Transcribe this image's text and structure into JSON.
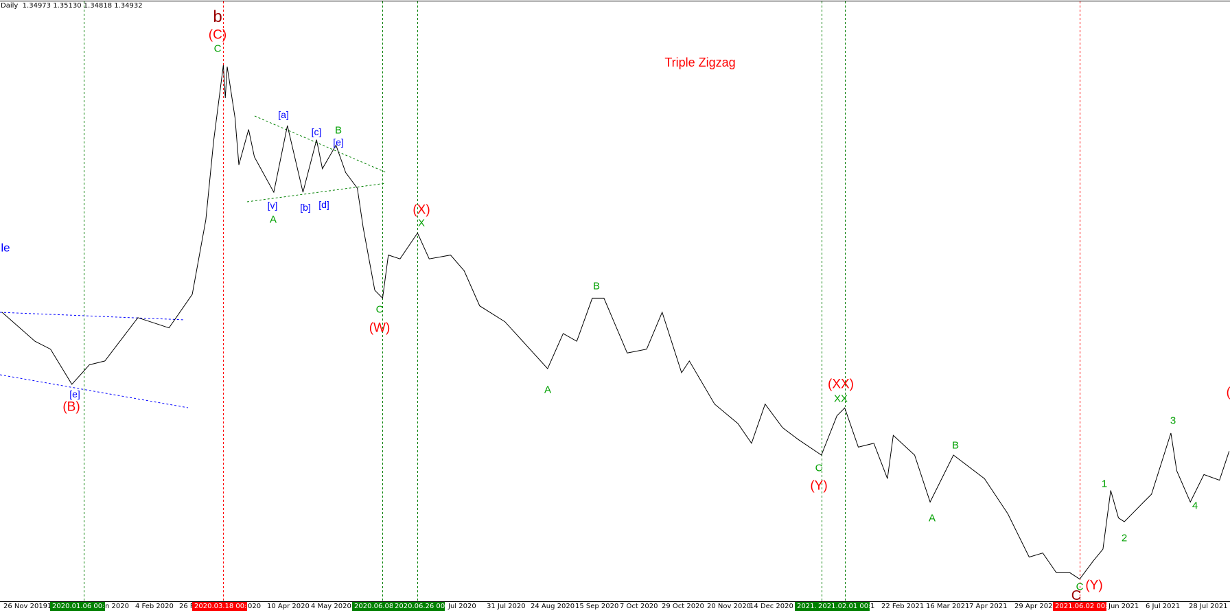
{
  "header": {
    "timeframe": "Daily",
    "ohlc": "1.34973 1.35130 1.34818 1.34932"
  },
  "colors": {
    "green": "#008000",
    "red": "#ff0000",
    "blue": "#0000ff",
    "price_line": "#000000",
    "label_green": "#00a000",
    "dark_red": "#990000"
  },
  "annotations": {
    "title": "Triple Zigzag",
    "left_cut": "le",
    "b": "b",
    "C_red": "(C)",
    "C_green": "C",
    "a_sq": "[a]",
    "c_sq": "[c]",
    "B1": "B",
    "e_sq": "[e]",
    "v_sq": "[v]",
    "A1": "A",
    "b_sq": "[b]",
    "d_sq": "[d]",
    "X_red": "(X)",
    "X_green": "X",
    "C2": "C",
    "W_red": "(W)",
    "B2": "B",
    "A2": "A",
    "XX_red": "(XX)",
    "XX_green": "XX",
    "C3": "C",
    "Y_red": "(Y)",
    "B3": "B",
    "A3": "A",
    "C4": "C",
    "Y2_red": "(Y)",
    "c_dark": "C",
    "w1": "1",
    "w2": "2",
    "w3": "3",
    "w4": "4",
    "A_red_cut": "(A",
    "e_left": "[e]",
    "B_red": "(B)"
  },
  "xaxis": {
    "ticks": [
      "26 Nov 2019",
      "1",
      "n 2020",
      "4 Feb 2020",
      "26 F",
      "020",
      "10 Apr 2020",
      "4 May 2020",
      "Jul 2020",
      "31 Jul 2020",
      "24 Aug 2020",
      "15 Sep 2020",
      "7 Oct 2020",
      "29 Oct 2020",
      "20 Nov 2020",
      "14 Dec 2020",
      "1",
      "22 Feb 2021",
      "16 Mar 2021",
      "7 Apr 2021",
      "29 Apr 2021",
      "Jun 2021",
      "6 Jul 2021",
      "28 Jul 2021"
    ],
    "markers": [
      {
        "label": "2020.01.06 00:00",
        "color": "green"
      },
      {
        "label": "2020.03.18 00:00",
        "color": "red"
      },
      {
        "label": "2020.06.08 00:00",
        "color": "green"
      },
      {
        "label": "2020.06.26 00:00",
        "color": "green"
      },
      {
        "label": "2021.01.",
        "color": "green"
      },
      {
        "label": "2021.02.01 00:00",
        "color": "green"
      },
      {
        "label": "2021.06.02 00:00",
        "color": "red"
      }
    ]
  },
  "chart_data": {
    "type": "line",
    "title": "Triple Zigzag",
    "grid": false,
    "x_range": [
      "2019-11-26",
      "2021-08-18"
    ],
    "vertical_lines": [
      {
        "date": "2020-01-06",
        "color": "green"
      },
      {
        "date": "2020-03-18",
        "color": "red"
      },
      {
        "date": "2020-06-08",
        "color": "green"
      },
      {
        "date": "2020-06-26",
        "color": "green"
      },
      {
        "date": "2021-01-20",
        "color": "green"
      },
      {
        "date": "2021-02-01",
        "color": "green"
      },
      {
        "date": "2021-06-02",
        "color": "red"
      }
    ],
    "series": [
      {
        "values": [
          [
            "2019-11-25",
            1.3388
          ],
          [
            "2019-12-12",
            1.3238
          ],
          [
            "2019-12-20",
            1.3197
          ],
          [
            "2019-12-31",
            1.3015
          ],
          [
            "2020-01-09",
            1.3116
          ],
          [
            "2020-01-17",
            1.3136
          ],
          [
            "2020-02-03",
            1.336
          ],
          [
            "2020-02-19",
            1.3307
          ],
          [
            "2020-03-02",
            1.3481
          ],
          [
            "2020-03-09",
            1.3867
          ],
          [
            "2020-03-13",
            1.4273
          ],
          [
            "2020-03-18",
            1.4667
          ],
          [
            "2020-03-19",
            1.4496
          ],
          [
            "2020-03-20",
            1.4659
          ],
          [
            "2020-03-24",
            1.4395
          ],
          [
            "2020-03-26",
            1.4151
          ],
          [
            "2020-03-31",
            1.4334
          ],
          [
            "2020-04-03",
            1.4192
          ],
          [
            "2020-04-13",
            1.4009
          ],
          [
            "2020-04-20",
            1.4354
          ],
          [
            "2020-04-28",
            1.4009
          ],
          [
            "2020-05-05",
            1.4281
          ],
          [
            "2020-05-08",
            1.4131
          ],
          [
            "2020-05-15",
            1.4253
          ],
          [
            "2020-05-20",
            1.4111
          ],
          [
            "2020-05-26",
            1.403
          ],
          [
            "2020-05-29",
            1.3827
          ],
          [
            "2020-06-04",
            1.3502
          ],
          [
            "2020-06-08",
            1.3461
          ],
          [
            "2020-06-11",
            1.3684
          ],
          [
            "2020-06-17",
            1.3664
          ],
          [
            "2020-06-26",
            1.3798
          ],
          [
            "2020-07-02",
            1.3664
          ],
          [
            "2020-07-13",
            1.3684
          ],
          [
            "2020-07-20",
            1.3603
          ],
          [
            "2020-07-28",
            1.3421
          ],
          [
            "2020-08-10",
            1.3339
          ],
          [
            "2020-08-21",
            1.3218
          ],
          [
            "2020-09-01",
            1.3096
          ],
          [
            "2020-09-09",
            1.3278
          ],
          [
            "2020-09-16",
            1.3238
          ],
          [
            "2020-09-24",
            1.3461
          ],
          [
            "2020-09-30",
            1.3461
          ],
          [
            "2020-10-12",
            1.3177
          ],
          [
            "2020-10-22",
            1.3197
          ],
          [
            "2020-10-30",
            1.3388
          ],
          [
            "2020-11-09",
            1.3075
          ],
          [
            "2020-11-13",
            1.3136
          ],
          [
            "2020-11-26",
            1.2913
          ],
          [
            "2020-12-08",
            1.2812
          ],
          [
            "2020-12-15",
            1.271
          ],
          [
            "2020-12-22",
            1.2913
          ],
          [
            "2020-12-31",
            1.2791
          ],
          [
            "2021-01-08",
            1.273
          ],
          [
            "2021-01-20",
            1.2649
          ],
          [
            "2021-01-28",
            1.2852
          ],
          [
            "2021-02-01",
            1.2893
          ],
          [
            "2021-02-08",
            1.269
          ],
          [
            "2021-02-16",
            1.271
          ],
          [
            "2021-02-23",
            1.2527
          ],
          [
            "2021-02-26",
            1.2751
          ],
          [
            "2021-03-09",
            1.2649
          ],
          [
            "2021-03-17",
            1.2406
          ],
          [
            "2021-03-29",
            1.2649
          ],
          [
            "2021-04-14",
            1.2527
          ],
          [
            "2021-04-26",
            1.2345
          ],
          [
            "2021-05-07",
            1.2121
          ],
          [
            "2021-05-14",
            1.2142
          ],
          [
            "2021-05-21",
            1.204
          ],
          [
            "2021-05-28",
            1.204
          ],
          [
            "2021-06-02",
            1.2007
          ],
          [
            "2021-06-09",
            1.2101
          ],
          [
            "2021-06-14",
            1.2162
          ],
          [
            "2021-06-18",
            1.2466
          ],
          [
            "2021-06-22",
            1.2324
          ],
          [
            "2021-06-25",
            1.2304
          ],
          [
            "2021-07-05",
            1.2406
          ],
          [
            "2021-07-09",
            1.2446
          ],
          [
            "2021-07-19",
            1.2763
          ],
          [
            "2021-07-22",
            1.2568
          ],
          [
            "2021-07-29",
            1.2406
          ],
          [
            "2021-08-05",
            1.2548
          ],
          [
            "2021-08-13",
            1.2519
          ],
          [
            "2021-08-18",
            1.2669
          ]
        ]
      }
    ]
  }
}
